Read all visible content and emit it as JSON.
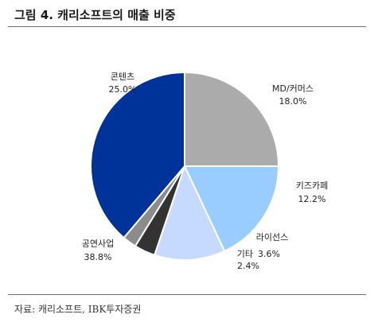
{
  "header": {
    "title": "그림 4. 캐리소프트의 매출 비중"
  },
  "footer": {
    "source": "자료: 캐리소프트, IBK투자증권"
  },
  "chart_data": {
    "type": "pie",
    "title": "그림 4. 캐리소프트의 매출 비중",
    "categories": [
      "콘텐츠",
      "MD/커머스",
      "키즈카페",
      "라이선스",
      "기타",
      "공연사업"
    ],
    "values": [
      25.0,
      18.0,
      12.2,
      3.6,
      2.4,
      38.8
    ],
    "value_labels": [
      "25.0%",
      "18.0%",
      "12.2%",
      "3.6%",
      "2.4%",
      "38.8%"
    ],
    "colors": [
      "#ababab",
      "#99ccff",
      "#c6daff",
      "#333333",
      "#8c8c8c",
      "#003399"
    ],
    "start_angle_deg": -90,
    "direction": "clockwise",
    "legend": "none",
    "slice_border": "#ffffff"
  }
}
